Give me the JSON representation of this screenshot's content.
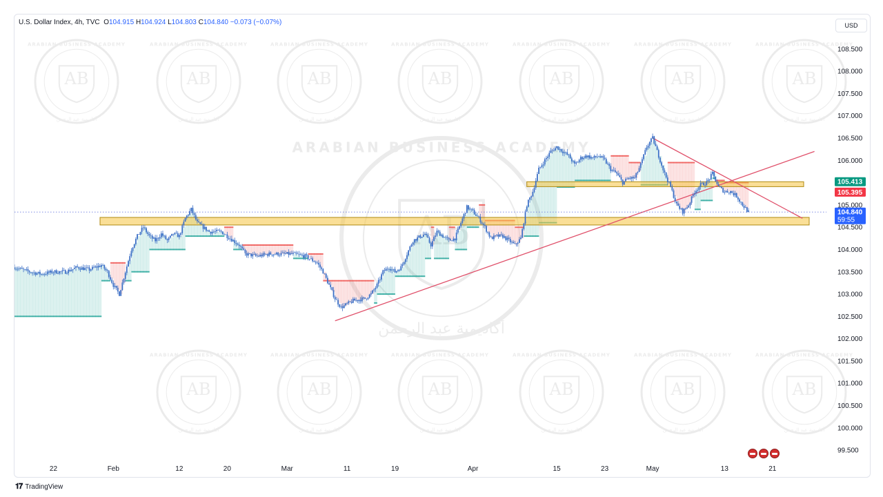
{
  "header": {
    "symbol": "U.S. Dollar Index, 4h, TVC",
    "o_label": "O",
    "o_value": "104.915",
    "h_label": "H",
    "h_value": "104.924",
    "l_label": "L",
    "l_value": "104.803",
    "c_label": "C",
    "c_value": "104.840",
    "change": "−0.073 (−0.07%)"
  },
  "currency": "USD",
  "brand": {
    "name": "TradingView",
    "logo": "tradingview-logo-icon"
  },
  "watermark": {
    "text": "ARABIAN BUSINESS ACADEMY",
    "initials": "AB",
    "arabic": "أكاديمية عبد الرحمن"
  },
  "events": [
    "us-flag-icon",
    "us-flag-icon",
    "us-flag-icon"
  ],
  "colors": {
    "candle": "#3b6fc6",
    "bull_cloud": "#26a69a",
    "bear_cloud": "#ef5350",
    "zone_fill": "#f5c542",
    "trendline": "#e0506a",
    "price_label": "#2962ff",
    "green_label": "#089981",
    "red_label": "#f23645"
  },
  "chart_data": {
    "type": "candlestick",
    "title": "",
    "xlabel": "",
    "ylabel": "",
    "y_ticks": [
      "108.500",
      "108.000",
      "107.500",
      "107.000",
      "106.500",
      "106.000",
      "105.500",
      "105.000",
      "104.500",
      "104.000",
      "103.500",
      "103.000",
      "102.500",
      "102.000",
      "101.500",
      "101.000",
      "100.500",
      "100.000",
      "99.500"
    ],
    "ylim": [
      99.3,
      108.9
    ],
    "x_ticks": [
      "22",
      "Feb",
      "12",
      "20",
      "Mar",
      "11",
      "19",
      "Apr",
      "15",
      "23",
      "May",
      "13",
      "21"
    ],
    "x_tick_days": [
      -10,
      0,
      11,
      19,
      29,
      39,
      47,
      60,
      74,
      82,
      90,
      102,
      110
    ],
    "x_domain_days": [
      -16.5,
      119
    ],
    "last_day": 106,
    "path": [
      [
        -16.5,
        103.6
      ],
      [
        -14,
        103.5
      ],
      [
        -12,
        103.45
      ],
      [
        -10,
        103.5
      ],
      [
        -8,
        103.5
      ],
      [
        -6,
        103.6
      ],
      [
        -4,
        103.55
      ],
      [
        -2,
        103.65
      ],
      [
        -1,
        103.5
      ],
      [
        0,
        103.2
      ],
      [
        1,
        103.0
      ],
      [
        2,
        103.5
      ],
      [
        3,
        104.0
      ],
      [
        4,
        104.3
      ],
      [
        5,
        104.5
      ],
      [
        6,
        104.3
      ],
      [
        7,
        104.2
      ],
      [
        8,
        104.35
      ],
      [
        9,
        104.2
      ],
      [
        10,
        104.35
      ],
      [
        11,
        104.3
      ],
      [
        12,
        104.7
      ],
      [
        13,
        104.9
      ],
      [
        14,
        104.6
      ],
      [
        15,
        104.5
      ],
      [
        16,
        104.4
      ],
      [
        17,
        104.4
      ],
      [
        18,
        104.4
      ],
      [
        19,
        104.3
      ],
      [
        20,
        104.2
      ],
      [
        21,
        104.1
      ],
      [
        22,
        103.9
      ],
      [
        24,
        103.85
      ],
      [
        26,
        103.9
      ],
      [
        28,
        103.9
      ],
      [
        30,
        103.9
      ],
      [
        32,
        103.85
      ],
      [
        34,
        103.7
      ],
      [
        35,
        103.5
      ],
      [
        36,
        103.2
      ],
      [
        37,
        102.9
      ],
      [
        38,
        102.7
      ],
      [
        40,
        102.85
      ],
      [
        42,
        102.9
      ],
      [
        43,
        103.0
      ],
      [
        44,
        103.2
      ],
      [
        45,
        103.5
      ],
      [
        46,
        103.6
      ],
      [
        47,
        103.5
      ],
      [
        48,
        103.6
      ],
      [
        49,
        103.9
      ],
      [
        50,
        104.2
      ],
      [
        52,
        104.35
      ],
      [
        53,
        104.1
      ],
      [
        54,
        104.4
      ],
      [
        56,
        104.2
      ],
      [
        57,
        104.25
      ],
      [
        58,
        104.6
      ],
      [
        59,
        104.95
      ],
      [
        60,
        104.85
      ],
      [
        61,
        104.7
      ],
      [
        62,
        104.5
      ],
      [
        63,
        104.25
      ],
      [
        64,
        104.3
      ],
      [
        65,
        104.3
      ],
      [
        66,
        104.2
      ],
      [
        67,
        104.1
      ],
      [
        68,
        104.25
      ],
      [
        69,
        105.0
      ],
      [
        70,
        105.3
      ],
      [
        71,
        105.8
      ],
      [
        72,
        106.0
      ],
      [
        73,
        106.2
      ],
      [
        74,
        106.3
      ],
      [
        75,
        106.2
      ],
      [
        76,
        106.1
      ],
      [
        77,
        105.9
      ],
      [
        78,
        106.05
      ],
      [
        79,
        106.1
      ],
      [
        80,
        106.05
      ],
      [
        81,
        106.1
      ],
      [
        82,
        106.0
      ],
      [
        83,
        105.8
      ],
      [
        84,
        105.7
      ],
      [
        85,
        105.5
      ],
      [
        86,
        105.6
      ],
      [
        87,
        105.6
      ],
      [
        88,
        105.9
      ],
      [
        89,
        106.3
      ],
      [
        90,
        106.5
      ],
      [
        91,
        106.1
      ],
      [
        92,
        105.7
      ],
      [
        93,
        105.4
      ],
      [
        94,
        105.0
      ],
      [
        95,
        104.85
      ],
      [
        96,
        105.0
      ],
      [
        97,
        105.3
      ],
      [
        98,
        105.45
      ],
      [
        99,
        105.5
      ],
      [
        100,
        105.7
      ],
      [
        101,
        105.4
      ],
      [
        102,
        105.3
      ],
      [
        103,
        105.3
      ],
      [
        104,
        105.2
      ],
      [
        105,
        105.0
      ],
      [
        106,
        104.84
      ]
    ],
    "ceiling_steps": [
      [
        -16.5,
        103.5
      ],
      [
        -2,
        103.7
      ],
      [
        4,
        104.3
      ],
      [
        14,
        104.5
      ],
      [
        20,
        104.1
      ],
      [
        24,
        104.1
      ],
      [
        30,
        103.9
      ],
      [
        35,
        103.3
      ],
      [
        38,
        103.3
      ],
      [
        45,
        103.6
      ],
      [
        50,
        104.5
      ],
      [
        55,
        104.5
      ],
      [
        58,
        105.0
      ],
      [
        62,
        104.65
      ],
      [
        67,
        104.5
      ],
      [
        69,
        105.3
      ],
      [
        75,
        106.2
      ],
      [
        81,
        106.1
      ],
      [
        86,
        105.95
      ],
      [
        93,
        105.95
      ],
      [
        97,
        105.55
      ],
      [
        102,
        105.5
      ],
      [
        106,
        105.395
      ]
    ],
    "floor_steps": [
      [
        -16.5,
        102.5
      ],
      [
        -2,
        103.3
      ],
      [
        3,
        103.5
      ],
      [
        6,
        104.0
      ],
      [
        12,
        104.3
      ],
      [
        20,
        104.0
      ],
      [
        24,
        103.9
      ],
      [
        30,
        103.8
      ],
      [
        37,
        102.75
      ],
      [
        40,
        102.8
      ],
      [
        44,
        103.0
      ],
      [
        47,
        103.4
      ],
      [
        52,
        103.8
      ],
      [
        56,
        104.0
      ],
      [
        59,
        104.5
      ],
      [
        63,
        104.3
      ],
      [
        69,
        104.3
      ],
      [
        71,
        104.6
      ],
      [
        74,
        105.4
      ],
      [
        77,
        105.55
      ],
      [
        83,
        105.7
      ],
      [
        88,
        105.45
      ],
      [
        94,
        104.9
      ],
      [
        98,
        105.1
      ],
      [
        100,
        105.6
      ],
      [
        102,
        105.5
      ],
      [
        106,
        105.413
      ]
    ],
    "zones": [
      {
        "from_day": -16.5,
        "to_day": 119,
        "low": 104.55,
        "high": 104.72
      },
      {
        "from_day": 69,
        "to_day": 118,
        "low": 105.41,
        "high": 105.52
      }
    ],
    "trendlines": [
      {
        "from": [
          37,
          102.4
        ],
        "to": [
          117,
          106.2
        ]
      },
      {
        "from": [
          90,
          106.5
        ],
        "to": [
          115,
          104.7
        ]
      }
    ],
    "current_price": 104.84,
    "price_labels": [
      {
        "price": 105.413,
        "text": "105.413",
        "kind": "green"
      },
      {
        "price": 105.395,
        "text": "105.395",
        "kind": "red"
      },
      {
        "price": 104.84,
        "text": "104.840",
        "kind": "current",
        "sub": "59:55"
      }
    ]
  }
}
